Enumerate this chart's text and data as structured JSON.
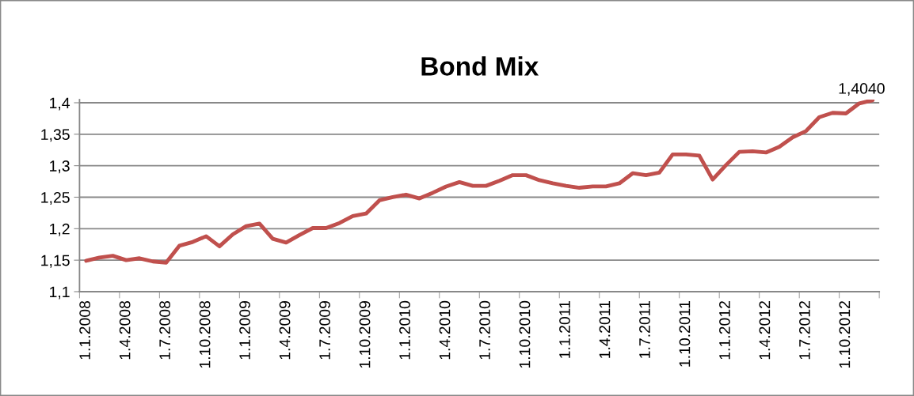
{
  "chart_data": {
    "type": "line",
    "title": "Bond Mix",
    "categories": [
      "1.1.2008",
      null,
      null,
      "1.4.2008",
      null,
      null,
      "1.7.2008",
      null,
      null,
      "1.10.2008",
      null,
      null,
      "1.1.2009",
      null,
      null,
      "1.4.2009",
      null,
      null,
      "1.7.2009",
      null,
      null,
      "1.10.2009",
      null,
      null,
      "1.1.2010",
      null,
      null,
      "1.4.2010",
      null,
      null,
      "1.7.2010",
      null,
      null,
      "1.10.2010",
      null,
      null,
      "1.1.2011",
      null,
      null,
      "1.4.2011",
      null,
      null,
      "1.7.2011",
      null,
      null,
      "1.10.2011",
      null,
      null,
      "1.1.2012",
      null,
      null,
      "1.4.2012",
      null,
      null,
      "1.7.2012",
      null,
      null,
      "1.10.2012",
      null,
      null
    ],
    "series": [
      {
        "color": "#c0504d",
        "values": [
          1.149,
          1.154,
          1.157,
          1.15,
          1.153,
          1.148,
          1.146,
          1.173,
          1.179,
          1.188,
          1.172,
          1.191,
          1.204,
          1.208,
          1.184,
          1.178,
          1.19,
          1.201,
          1.201,
          1.209,
          1.22,
          1.224,
          1.245,
          1.25,
          1.254,
          1.248,
          1.257,
          1.267,
          1.274,
          1.268,
          1.268,
          1.276,
          1.285,
          1.285,
          1.277,
          1.272,
          1.268,
          1.265,
          1.267,
          1.267,
          1.272,
          1.288,
          1.285,
          1.289,
          1.318,
          1.318,
          1.316,
          1.278,
          1.301,
          1.322,
          1.323,
          1.321,
          1.33,
          1.345,
          1.355,
          1.377,
          1.384,
          1.383,
          1.399,
          1.404
        ],
        "value_labels": [
          null,
          null,
          null,
          null,
          null,
          null,
          null,
          null,
          null,
          null,
          null,
          null,
          null,
          null,
          null,
          null,
          null,
          null,
          null,
          null,
          null,
          null,
          null,
          null,
          null,
          null,
          null,
          null,
          null,
          null,
          null,
          null,
          null,
          null,
          null,
          null,
          null,
          null,
          null,
          null,
          null,
          null,
          null,
          null,
          null,
          null,
          null,
          null,
          null,
          null,
          null,
          null,
          null,
          null,
          null,
          null,
          null,
          null,
          null,
          "1,4040"
        ]
      }
    ],
    "ylim": [
      1.1,
      1.405
    ],
    "yticks": [
      {
        "value": 1.1,
        "label": "1,1"
      },
      {
        "value": 1.15,
        "label": "1,15"
      },
      {
        "value": 1.2,
        "label": "1,2"
      },
      {
        "value": 1.25,
        "label": "1,25"
      },
      {
        "value": 1.3,
        "label": "1,3"
      },
      {
        "value": 1.35,
        "label": "1,35"
      },
      {
        "value": 1.4,
        "label": "1,4"
      }
    ],
    "grid": "y",
    "legend": false,
    "marker": "none",
    "line_style": "solid"
  }
}
